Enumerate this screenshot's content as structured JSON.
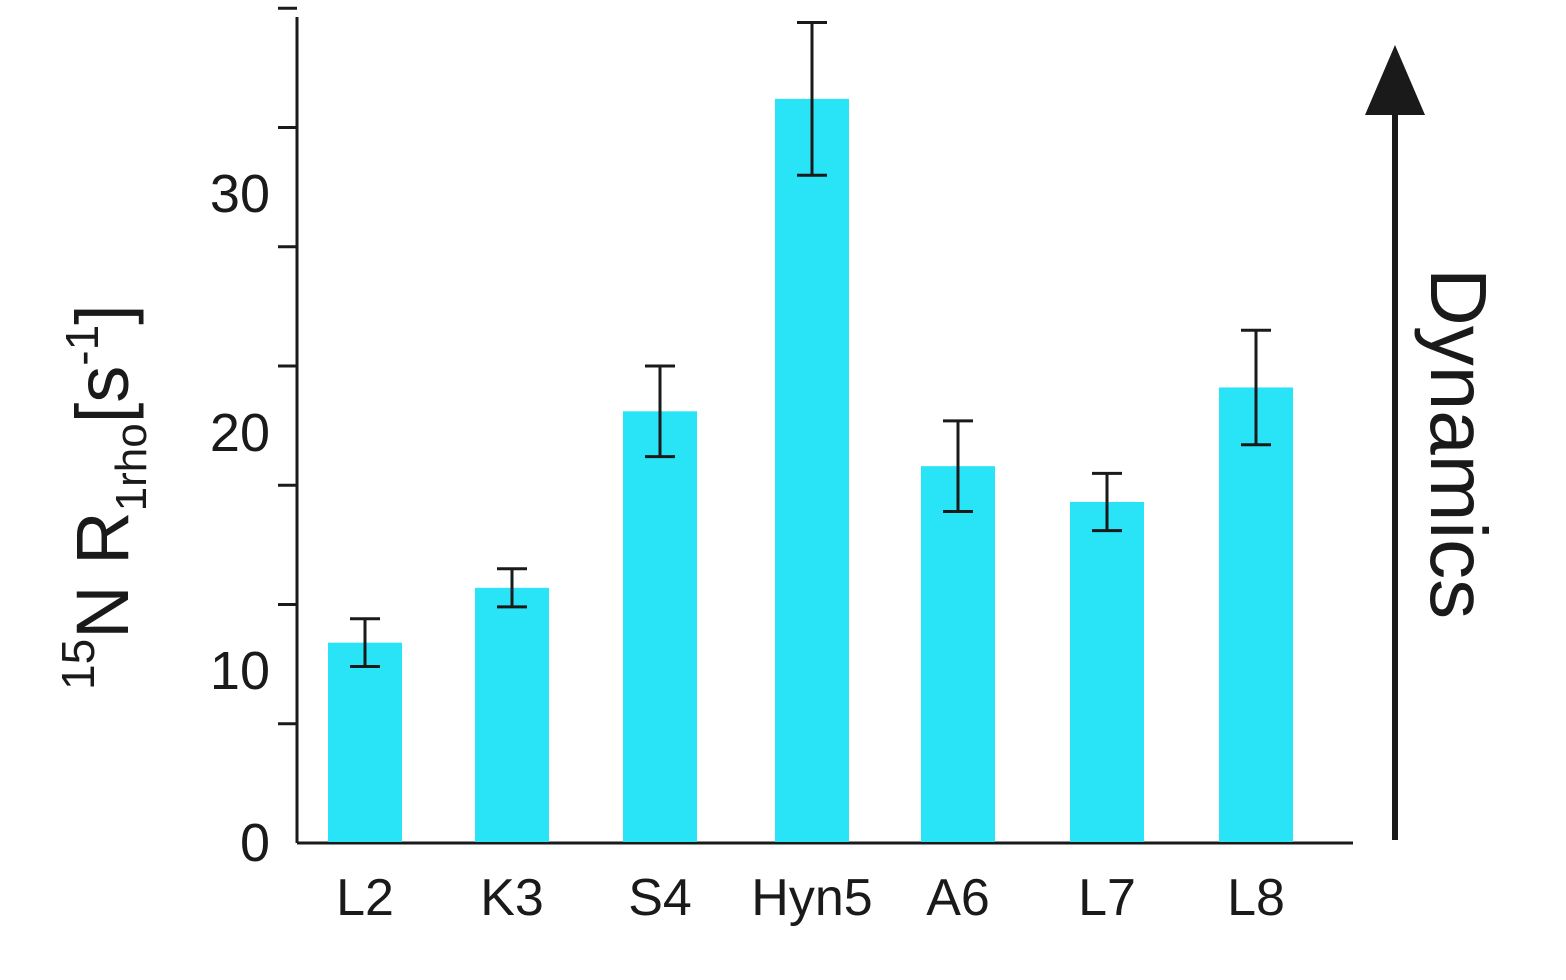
{
  "chart_data": {
    "type": "bar",
    "categories": [
      "L2",
      "K3",
      "S4",
      "Hyn5",
      "A6",
      "L7",
      "L8"
    ],
    "values": [
      8.4,
      10.7,
      18.1,
      31.2,
      15.8,
      14.3,
      19.1
    ],
    "errors": [
      1.0,
      0.8,
      1.9,
      3.2,
      1.9,
      1.2,
      2.4
    ],
    "ylabel": {
      "sup": "15",
      "main": "N R",
      "sub": "1rho",
      "unit_open": "[s",
      "unit_sup": "-1",
      "unit_close": "]"
    },
    "yticks": [
      "0",
      "10",
      "20",
      "30"
    ],
    "ylim": [
      0,
      35
    ],
    "arrow_label": "Dynamics",
    "grid": false,
    "bar_color": "#29e3f6",
    "error_color": "#1a1a1a"
  }
}
